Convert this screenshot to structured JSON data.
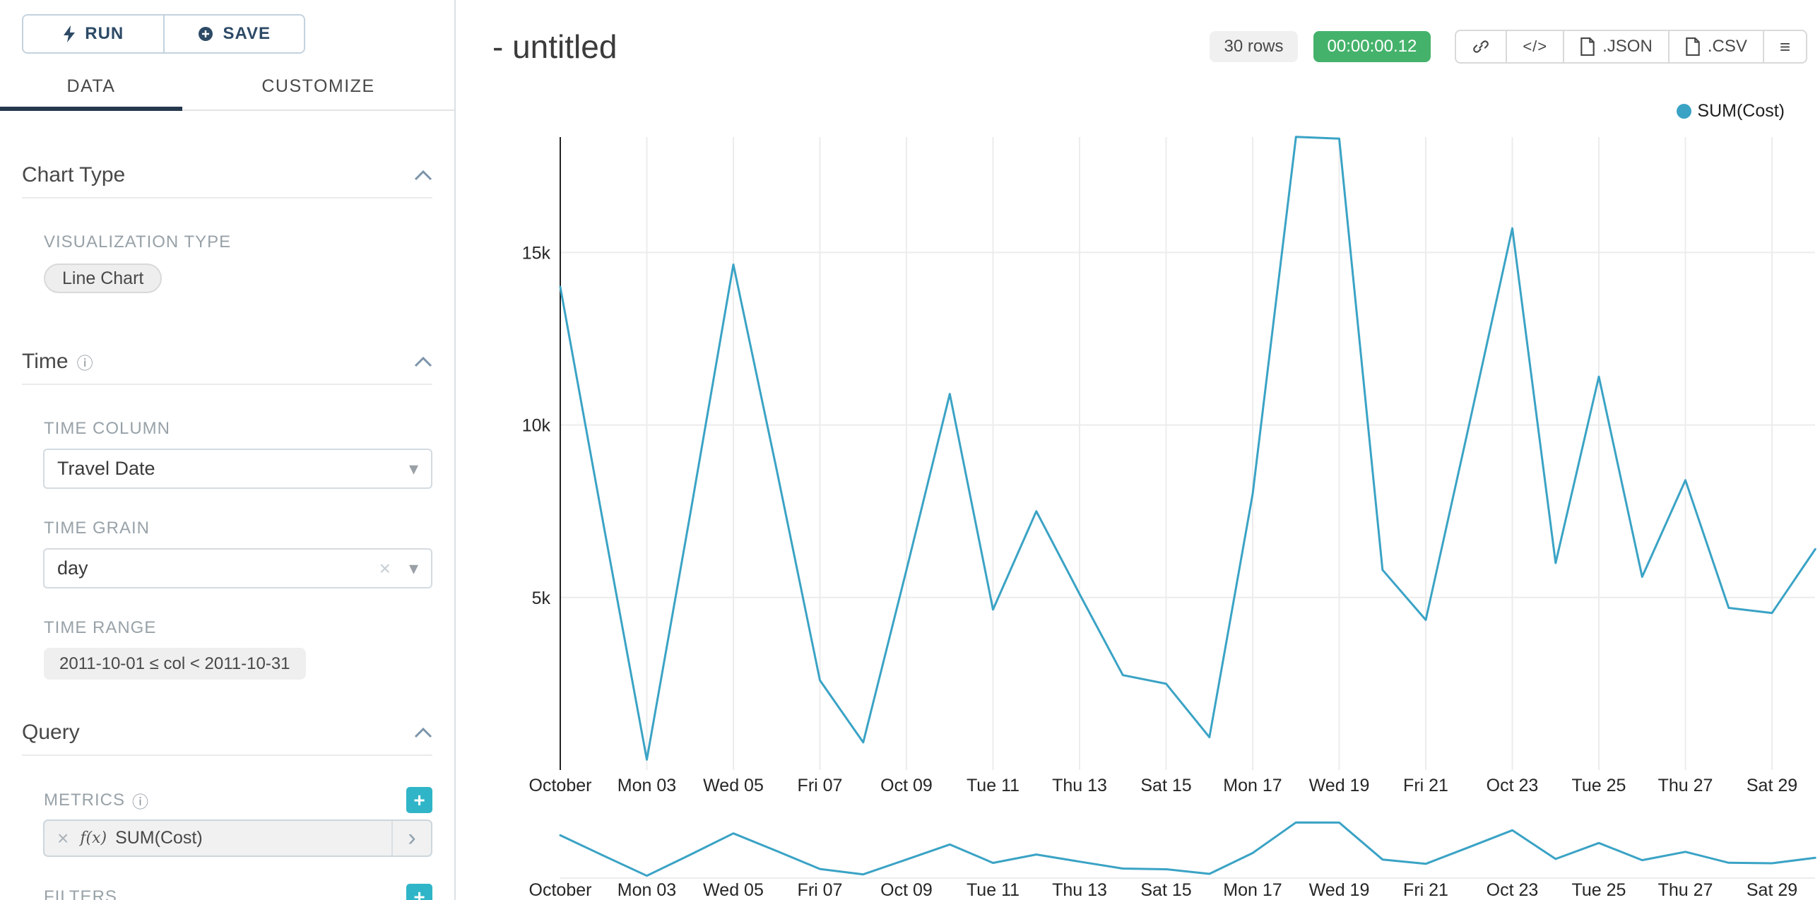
{
  "colors": {
    "accent_teal": "#2FB5C7",
    "timer_green": "#45B26B",
    "line": "#3AA3C5",
    "tab_underline": "#26384E",
    "button_navy": "#2D4A66"
  },
  "icons": {
    "info": "ⓘ",
    "caret": "▾",
    "clear": "×",
    "remove": "×",
    "expand": "›",
    "menu": "≡",
    "plus": "+"
  },
  "sidebar": {
    "run_label": "RUN",
    "save_label": "SAVE",
    "tabs": [
      {
        "label": "DATA"
      },
      {
        "label": "CUSTOMIZE"
      }
    ],
    "chart_type": {
      "title": "Chart Type",
      "viz_label": "VISUALIZATION TYPE",
      "viz_value": "Line Chart"
    },
    "time": {
      "title": "Time",
      "time_column_label": "TIME COLUMN",
      "time_column_value": "Travel Date",
      "time_grain_label": "TIME GRAIN",
      "time_grain_value": "day",
      "time_range_label": "TIME RANGE",
      "time_range_value": "2011-10-01 ≤ col < 2011-10-31"
    },
    "query": {
      "title": "Query",
      "metrics_label": "METRICS",
      "metric_fx": "f(x)",
      "metric_value": "SUM(Cost)",
      "filters_label": "FILTERS"
    }
  },
  "header": {
    "title": "- untitled",
    "rows_badge": "30 rows",
    "timer": "00:00:00.12",
    "code_button": "</>",
    "json_button": ".JSON",
    "csv_button": ".CSV"
  },
  "legend": {
    "label": "SUM(Cost)"
  },
  "chart_data": {
    "type": "line",
    "title": "",
    "xlabel": "",
    "ylabel": "",
    "legend_position": "top-right",
    "grid": true,
    "color": "#3AA3C5",
    "ylim": [
      0,
      18400
    ],
    "y_ticks": [
      {
        "value": 5000,
        "label": "5k"
      },
      {
        "value": 10000,
        "label": "10k"
      },
      {
        "value": 15000,
        "label": "15k"
      }
    ],
    "x": [
      "2011-10-01",
      "2011-10-02",
      "2011-10-03",
      "2011-10-04",
      "2011-10-05",
      "2011-10-06",
      "2011-10-07",
      "2011-10-08",
      "2011-10-09",
      "2011-10-10",
      "2011-10-11",
      "2011-10-12",
      "2011-10-13",
      "2011-10-14",
      "2011-10-15",
      "2011-10-16",
      "2011-10-17",
      "2011-10-18",
      "2011-10-19",
      "2011-10-20",
      "2011-10-21",
      "2011-10-22",
      "2011-10-23",
      "2011-10-24",
      "2011-10-25",
      "2011-10-26",
      "2011-10-27",
      "2011-10-28",
      "2011-10-29",
      "2011-10-30"
    ],
    "x_tick_labels": [
      "October",
      "Mon 03",
      "Wed 05",
      "Fri 07",
      "Oct 09",
      "Tue 11",
      "Thu 13",
      "Sat 15",
      "Mon 17",
      "Wed 19",
      "Fri 21",
      "Oct 23",
      "Tue 25",
      "Thu 27",
      "Sat 29"
    ],
    "series": [
      {
        "name": "SUM(Cost)",
        "values": [
          14000,
          7100,
          300,
          7400,
          14650,
          8700,
          2600,
          800,
          5800,
          10900,
          4650,
          7500,
          5100,
          2750,
          2500,
          950,
          8000,
          18350,
          18300,
          5800,
          4350,
          10000,
          15700,
          6000,
          11400,
          5600,
          8400,
          4700,
          4550,
          6400
        ]
      }
    ],
    "has_context_brush_chart": true
  }
}
